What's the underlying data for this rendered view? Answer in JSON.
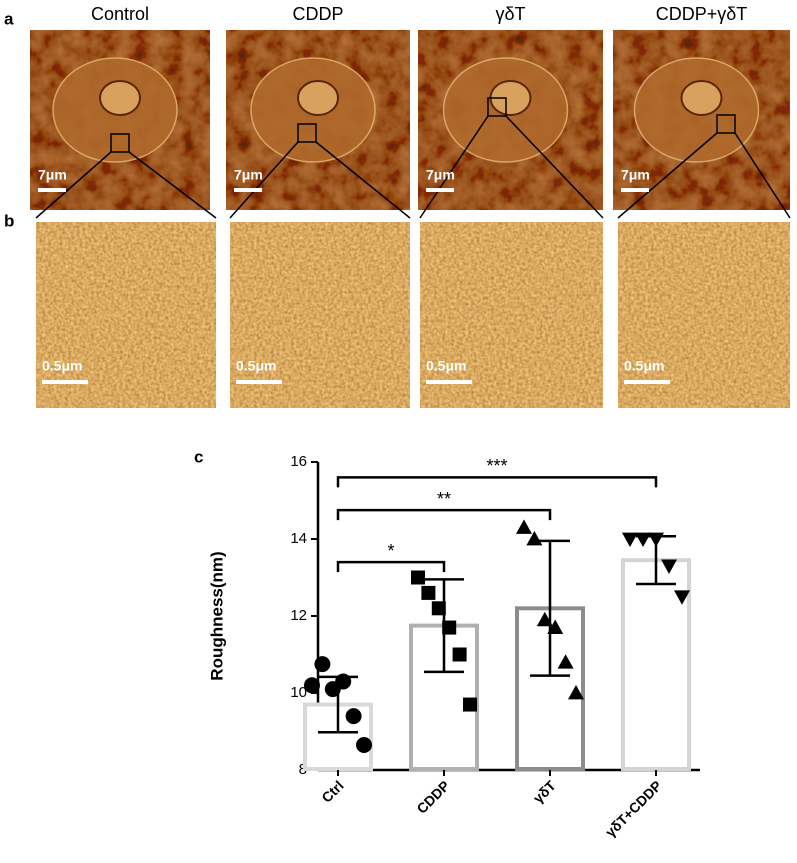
{
  "panel_a": {
    "label": "a",
    "columns": [
      "Control",
      "CDDP",
      "γδT",
      "CDDP+γδT"
    ],
    "scale_labels": [
      "7μm",
      "7μm",
      "7μm",
      "7μm"
    ]
  },
  "panel_b": {
    "label": "b",
    "scale_labels": [
      "0.5μm",
      "0.5μm",
      "0.5μm",
      "0.5μm"
    ]
  },
  "panel_c": {
    "label": "c"
  },
  "chart_data": {
    "type": "bar",
    "y_label": "Roughness(nm)",
    "categories": [
      "Ctrl",
      "CDDP",
      "γδT",
      "γδT+CDDP"
    ],
    "values": [
      9.7,
      11.75,
      12.2,
      13.45
    ],
    "errors": [
      0.72,
      1.2,
      1.75,
      0.62
    ],
    "bar_colors": [
      "#d9d9d9",
      "#b0b0b0",
      "#8c8c8c",
      "#d4d4d4"
    ],
    "markers": [
      "circle",
      "square",
      "triangle",
      "triangle-down"
    ],
    "points": [
      [
        10.2,
        10.75,
        10.1,
        10.3,
        9.4,
        8.65
      ],
      [
        13.0,
        12.6,
        12.2,
        11.7,
        11.0,
        9.7
      ],
      [
        14.3,
        14.0,
        11.9,
        11.7,
        10.8,
        10.0
      ],
      [
        14.0,
        14.0,
        14.0,
        13.3,
        12.5
      ]
    ],
    "brackets": [
      {
        "label": "*",
        "from": "Ctrl",
        "to": "CDDP",
        "y": 13.4
      },
      {
        "label": "**",
        "from": "Ctrl",
        "to": "γδT",
        "y": 14.75
      },
      {
        "label": "***",
        "from": "Ctrl",
        "to": "γδT+CDDP",
        "y": 15.6
      }
    ],
    "ylim": [
      8,
      16
    ],
    "yticks": [
      8,
      10,
      12,
      14,
      16
    ]
  }
}
